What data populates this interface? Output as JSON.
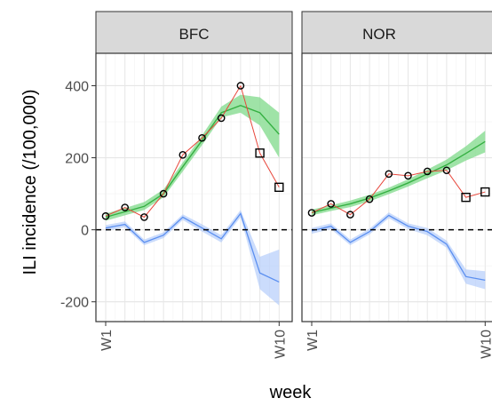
{
  "chart_data": {
    "type": "line",
    "xlabel": "week",
    "ylabel": "ILI incidence (/100,000)",
    "ylim": [
      -255,
      490
    ],
    "y_ticks": [
      -200,
      0,
      200,
      400
    ],
    "x_tick_labels": [
      "W1",
      "W10"
    ],
    "grid": true,
    "reference_line": {
      "y": 0,
      "style": "dashed",
      "color": "#000000"
    },
    "colors": {
      "observed_line": "#e8473c",
      "fit_line": "#35b042",
      "fit_band": "#7fd98a",
      "residual_line": "#5b8ff0",
      "residual_band": "#a9c4fa",
      "strip_fill": "#d9d9d9",
      "grid_major": "#e6e6e6"
    },
    "panels": [
      {
        "strip": "BFC",
        "observed": [
          {
            "x": 1,
            "y": 38,
            "shape": "circle"
          },
          {
            "x": 2,
            "y": 62,
            "shape": "circle"
          },
          {
            "x": 3,
            "y": 35,
            "shape": "circle"
          },
          {
            "x": 4,
            "y": 100,
            "shape": "circle"
          },
          {
            "x": 5,
            "y": 208,
            "shape": "circle"
          },
          {
            "x": 6,
            "y": 255,
            "shape": "circle"
          },
          {
            "x": 7,
            "y": 310,
            "shape": "circle"
          },
          {
            "x": 8,
            "y": 400,
            "shape": "circle"
          },
          {
            "x": 9,
            "y": 213,
            "shape": "square"
          },
          {
            "x": 10,
            "y": 118,
            "shape": "square"
          }
        ],
        "fit": {
          "x": [
            1,
            2,
            3,
            4,
            5,
            6,
            7,
            8,
            9,
            10
          ],
          "y": [
            35,
            50,
            65,
            100,
            175,
            248,
            325,
            345,
            325,
            265
          ],
          "lower": [
            25,
            40,
            55,
            90,
            162,
            235,
            312,
            325,
            290,
            200
          ],
          "upper": [
            45,
            60,
            77,
            112,
            187,
            262,
            342,
            375,
            368,
            325
          ]
        },
        "residual": {
          "x": [
            1,
            2,
            3,
            4,
            5,
            6,
            7,
            8,
            9,
            10
          ],
          "y": [
            5,
            15,
            -35,
            -15,
            35,
            5,
            -25,
            45,
            -120,
            -145
          ],
          "lower": [
            -3,
            7,
            -43,
            -23,
            27,
            -5,
            -35,
            35,
            -165,
            -210
          ],
          "upper": [
            13,
            23,
            -27,
            -7,
            43,
            15,
            -15,
            55,
            -75,
            -55
          ]
        }
      },
      {
        "strip": "NOR",
        "observed": [
          {
            "x": 1,
            "y": 47,
            "shape": "circle"
          },
          {
            "x": 2,
            "y": 72,
            "shape": "circle"
          },
          {
            "x": 3,
            "y": 42,
            "shape": "circle"
          },
          {
            "x": 4,
            "y": 85,
            "shape": "circle"
          },
          {
            "x": 5,
            "y": 155,
            "shape": "circle"
          },
          {
            "x": 6,
            "y": 150,
            "shape": "circle"
          },
          {
            "x": 7,
            "y": 162,
            "shape": "circle"
          },
          {
            "x": 8,
            "y": 165,
            "shape": "circle"
          },
          {
            "x": 9,
            "y": 90,
            "shape": "square"
          },
          {
            "x": 10,
            "y": 105,
            "shape": "square"
          }
        ],
        "fit": {
          "x": [
            1,
            2,
            3,
            4,
            5,
            6,
            7,
            8,
            9,
            10
          ],
          "y": [
            48,
            60,
            72,
            88,
            108,
            130,
            155,
            180,
            212,
            245
          ],
          "lower": [
            40,
            52,
            63,
            79,
            99,
            120,
            143,
            165,
            192,
            215
          ],
          "upper": [
            56,
            68,
            81,
            97,
            117,
            140,
            167,
            195,
            232,
            275
          ]
        },
        "residual": {
          "x": [
            1,
            2,
            3,
            4,
            5,
            6,
            7,
            8,
            9,
            10
          ],
          "y": [
            -3,
            10,
            -35,
            -5,
            40,
            10,
            -5,
            -40,
            -130,
            -140
          ],
          "lower": [
            -11,
            2,
            -43,
            -13,
            32,
            2,
            -15,
            -50,
            -150,
            -165
          ],
          "upper": [
            5,
            18,
            -27,
            3,
            48,
            18,
            5,
            -30,
            -110,
            -115
          ]
        }
      }
    ]
  }
}
